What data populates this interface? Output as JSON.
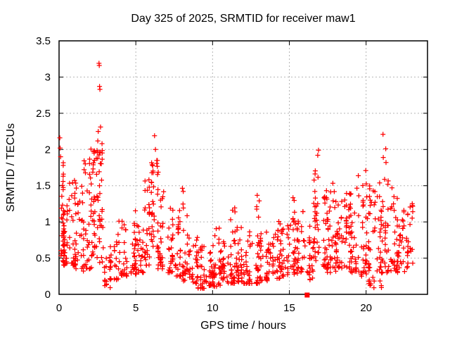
{
  "chart_data": {
    "type": "scatter",
    "title": "Day 325 of 2025, SRMTID for receiver maw1",
    "xlabel": "GPS time / hours",
    "ylabel": "SRMTID / TECUs",
    "xlim": [
      0,
      24
    ],
    "ylim": [
      0,
      3.5
    ],
    "xticks": {
      "values": [
        0,
        5,
        10,
        15,
        20
      ],
      "labels": [
        "0",
        "5",
        "10",
        "15",
        "20"
      ]
    },
    "yticks": {
      "values": [
        0,
        0.5,
        1,
        1.5,
        2,
        2.5,
        3,
        3.5
      ],
      "labels": [
        "0",
        "0.5",
        "1",
        "1.5",
        "2",
        "2.5",
        "3",
        "3.5"
      ]
    },
    "grid": true,
    "legend": "none",
    "marker": {
      "shape": "plus",
      "size": 7,
      "color": "#ff0000"
    },
    "special_point": {
      "x": 16.16,
      "y": 0,
      "marker": "filled-square",
      "size": 7,
      "color": "#ff0000"
    },
    "colors": {
      "marker": "#ff0000",
      "grid": "#b5b5b5",
      "axis": "#000000",
      "text": "#000000",
      "background": "#ffffff"
    },
    "points_model": {
      "format": [
        "x_start",
        "x_end",
        "count",
        "y_min",
        "y_max",
        "low_bias_exponent"
      ],
      "seed": 20251121,
      "clusters": [
        [
          0.0,
          0.35,
          36,
          0.45,
          1.85,
          1.7
        ],
        [
          0.3,
          0.7,
          30,
          0.4,
          1.35,
          1.8
        ],
        [
          0.6,
          1.1,
          34,
          0.4,
          1.6,
          2.0
        ],
        [
          1.1,
          1.6,
          26,
          0.3,
          1.5,
          1.8
        ],
        [
          1.6,
          2.1,
          30,
          0.35,
          1.9,
          1.6
        ],
        [
          2.0,
          2.45,
          34,
          0.5,
          2.1,
          1.2
        ],
        [
          2.45,
          2.95,
          38,
          0.4,
          2.2,
          1.1
        ],
        [
          2.95,
          3.35,
          16,
          0.08,
          0.55,
          1.5
        ],
        [
          3.3,
          3.9,
          24,
          0.2,
          0.85,
          1.8
        ],
        [
          3.9,
          4.5,
          26,
          0.25,
          1.05,
          2.0
        ],
        [
          4.5,
          5.0,
          26,
          0.28,
          1.35,
          2.2
        ],
        [
          5.0,
          5.55,
          26,
          0.3,
          1.0,
          1.8
        ],
        [
          5.55,
          6.0,
          28,
          0.4,
          1.6,
          1.6
        ],
        [
          6.0,
          6.45,
          36,
          0.5,
          1.95,
          1.0
        ],
        [
          6.45,
          7.0,
          30,
          0.35,
          1.5,
          1.8
        ],
        [
          7.0,
          7.5,
          28,
          0.3,
          1.2,
          1.8
        ],
        [
          7.5,
          8.05,
          28,
          0.25,
          1.25,
          2.0
        ],
        [
          8.05,
          8.5,
          28,
          0.18,
          1.55,
          2.4
        ],
        [
          8.5,
          9.0,
          26,
          0.15,
          0.8,
          1.8
        ],
        [
          9.0,
          9.55,
          26,
          0.08,
          0.75,
          1.8
        ],
        [
          9.5,
          10.05,
          26,
          0.12,
          0.6,
          1.5
        ],
        [
          10.0,
          10.5,
          30,
          0.1,
          1.1,
          2.2
        ],
        [
          10.5,
          11.05,
          28,
          0.15,
          0.8,
          1.8
        ],
        [
          11.0,
          11.5,
          30,
          0.15,
          1.45,
          2.4
        ],
        [
          11.5,
          12.05,
          30,
          0.15,
          1.1,
          2.2
        ],
        [
          12.0,
          12.5,
          28,
          0.15,
          0.9,
          2.0
        ],
        [
          12.5,
          13.05,
          28,
          0.15,
          1.4,
          2.4
        ],
        [
          13.0,
          13.55,
          26,
          0.18,
          0.95,
          2.0
        ],
        [
          13.5,
          14.05,
          26,
          0.2,
          0.8,
          1.8
        ],
        [
          14.0,
          14.55,
          26,
          0.22,
          1.1,
          2.0
        ],
        [
          14.5,
          15.0,
          26,
          0.25,
          0.95,
          1.8
        ],
        [
          15.0,
          15.55,
          28,
          0.28,
          1.35,
          1.8
        ],
        [
          15.5,
          16.05,
          28,
          0.28,
          1.15,
          1.8
        ],
        [
          16.0,
          16.55,
          26,
          0.2,
          1.0,
          1.6
        ],
        [
          16.55,
          17.0,
          30,
          0.4,
          1.85,
          1.2
        ],
        [
          17.0,
          17.55,
          30,
          0.35,
          1.45,
          1.6
        ],
        [
          17.5,
          18.05,
          30,
          0.3,
          1.55,
          1.7
        ],
        [
          18.0,
          18.55,
          30,
          0.35,
          1.3,
          1.6
        ],
        [
          18.5,
          19.0,
          30,
          0.35,
          1.4,
          1.6
        ],
        [
          19.0,
          19.55,
          30,
          0.3,
          1.5,
          1.6
        ],
        [
          19.5,
          20.05,
          32,
          0.25,
          1.75,
          1.7
        ],
        [
          20.0,
          20.5,
          32,
          0.12,
          1.55,
          1.6
        ],
        [
          20.5,
          21.05,
          32,
          0.06,
          1.6,
          1.5
        ],
        [
          21.0,
          21.5,
          30,
          0.3,
          1.75,
          1.5
        ],
        [
          21.5,
          22.05,
          30,
          0.3,
          1.5,
          1.6
        ],
        [
          22.0,
          22.5,
          28,
          0.3,
          1.2,
          1.5
        ],
        [
          22.5,
          23.05,
          26,
          0.35,
          1.3,
          1.5
        ]
      ],
      "outliers": [
        [
          0.05,
          2.16
        ],
        [
          0.07,
          2.02
        ],
        [
          0.1,
          1.9
        ],
        [
          2.6,
          3.19
        ],
        [
          2.62,
          3.16
        ],
        [
          2.64,
          2.87
        ],
        [
          2.66,
          2.83
        ],
        [
          2.7,
          2.31
        ],
        [
          2.55,
          2.25
        ],
        [
          6.22,
          2.19
        ],
        [
          6.28,
          2.0
        ],
        [
          16.9,
          1.99
        ],
        [
          16.85,
          1.92
        ],
        [
          21.1,
          2.21
        ],
        [
          21.28,
          2.01
        ],
        [
          21.12,
          1.89
        ],
        [
          21.3,
          1.82
        ]
      ]
    }
  }
}
